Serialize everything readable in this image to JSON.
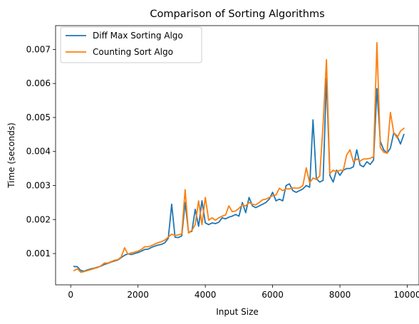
{
  "chart_data": {
    "type": "line",
    "title": "Comparison of Sorting Algorithms",
    "xlabel": "Input Size",
    "ylabel": "Time (seconds)",
    "xlim": [
      -450,
      10350
    ],
    "ylim": [
      8e-05,
      0.0077
    ],
    "xticks": [
      0,
      2000,
      4000,
      6000,
      8000,
      10000
    ],
    "xtick_labels": [
      "0",
      "2000",
      "4000",
      "6000",
      "8000",
      "10000"
    ],
    "yticks": [
      0.001,
      0.002,
      0.003,
      0.004,
      0.005,
      0.006,
      0.007
    ],
    "ytick_labels": [
      "0.001",
      "0.002",
      "0.003",
      "0.004",
      "0.005",
      "0.006",
      "0.007"
    ],
    "grid": false,
    "legend_position": "top-left",
    "x": [
      100,
      200,
      300,
      400,
      500,
      600,
      700,
      800,
      900,
      1000,
      1100,
      1200,
      1300,
      1400,
      1500,
      1600,
      1700,
      1800,
      1900,
      2000,
      2100,
      2200,
      2300,
      2400,
      2500,
      2600,
      2700,
      2800,
      2900,
      3000,
      3100,
      3200,
      3300,
      3400,
      3500,
      3600,
      3700,
      3800,
      3900,
      4000,
      4100,
      4200,
      4300,
      4400,
      4500,
      4600,
      4700,
      4800,
      4900,
      5000,
      5100,
      5200,
      5300,
      5400,
      5500,
      5600,
      5700,
      5800,
      5900,
      6000,
      6100,
      6200,
      6300,
      6400,
      6500,
      6600,
      6700,
      6800,
      6900,
      7000,
      7100,
      7200,
      7300,
      7400,
      7500,
      7600,
      7700,
      7800,
      7900,
      8000,
      8100,
      8200,
      8300,
      8400,
      8500,
      8600,
      8700,
      8800,
      8900,
      9000,
      9100,
      9200,
      9300,
      9400,
      9500,
      9600,
      9700,
      9800,
      9900
    ],
    "series": [
      {
        "name": "Diff Max Sorting Algo",
        "color": "#1f77b4",
        "values": [
          0.00062,
          0.00061,
          0.0005,
          0.00048,
          0.00052,
          0.00055,
          0.00057,
          0.0006,
          0.00063,
          0.00068,
          0.00071,
          0.00075,
          0.00078,
          0.00081,
          0.00088,
          0.00095,
          0.00099,
          0.00097,
          0.001,
          0.00103,
          0.00107,
          0.00112,
          0.00113,
          0.00118,
          0.00122,
          0.00125,
          0.00127,
          0.00132,
          0.00145,
          0.00245,
          0.00148,
          0.00147,
          0.00152,
          0.0025,
          0.00163,
          0.00165,
          0.0023,
          0.0018,
          0.00255,
          0.0019,
          0.00185,
          0.0019,
          0.00188,
          0.00192,
          0.00205,
          0.00202,
          0.00207,
          0.0021,
          0.00215,
          0.0021,
          0.0025,
          0.0022,
          0.00265,
          0.0024,
          0.00235,
          0.0024,
          0.00245,
          0.0025,
          0.0026,
          0.0028,
          0.00255,
          0.0026,
          0.00255,
          0.003,
          0.00305,
          0.00285,
          0.0028,
          0.00285,
          0.0029,
          0.003,
          0.00295,
          0.00493,
          0.0032,
          0.0031,
          0.00315,
          0.00615,
          0.0033,
          0.0031,
          0.00345,
          0.0033,
          0.00345,
          0.0035,
          0.0035,
          0.00355,
          0.00405,
          0.0036,
          0.00355,
          0.0037,
          0.00362,
          0.00375,
          0.00585,
          0.0043,
          0.00405,
          0.00395,
          0.0041,
          0.00455,
          0.00445,
          0.00422,
          0.0045
        ]
      },
      {
        "name": "Counting Sort Algo",
        "color": "#ff7f0e",
        "values": [
          0.0005,
          0.00055,
          0.00045,
          0.00047,
          0.0005,
          0.00053,
          0.00056,
          0.00059,
          0.00064,
          0.00072,
          0.00072,
          0.00076,
          0.0008,
          0.00082,
          0.0009,
          0.00117,
          0.00098,
          0.00102,
          0.00104,
          0.00107,
          0.00112,
          0.0012,
          0.0012,
          0.00123,
          0.00128,
          0.00132,
          0.00135,
          0.0014,
          0.00148,
          0.00157,
          0.00153,
          0.00155,
          0.00158,
          0.00288,
          0.0016,
          0.00168,
          0.00185,
          0.00255,
          0.00185,
          0.00265,
          0.00198,
          0.00205,
          0.00198,
          0.00205,
          0.0021,
          0.00213,
          0.0024,
          0.00223,
          0.00225,
          0.00233,
          0.00243,
          0.0024,
          0.0025,
          0.00245,
          0.00243,
          0.0025,
          0.00258,
          0.0026,
          0.00265,
          0.0027,
          0.00272,
          0.00292,
          0.00285,
          0.0029,
          0.0029,
          0.00293,
          0.00292,
          0.00293,
          0.003,
          0.00352,
          0.00308,
          0.00322,
          0.00318,
          0.00328,
          0.0048,
          0.0067,
          0.00335,
          0.00345,
          0.0034,
          0.00345,
          0.00345,
          0.0039,
          0.00405,
          0.0037,
          0.00378,
          0.00372,
          0.00378,
          0.00378,
          0.0038,
          0.00385,
          0.0072,
          0.00412,
          0.00398,
          0.00395,
          0.00515,
          0.00455,
          0.0044,
          0.0046,
          0.00468
        ]
      }
    ]
  }
}
